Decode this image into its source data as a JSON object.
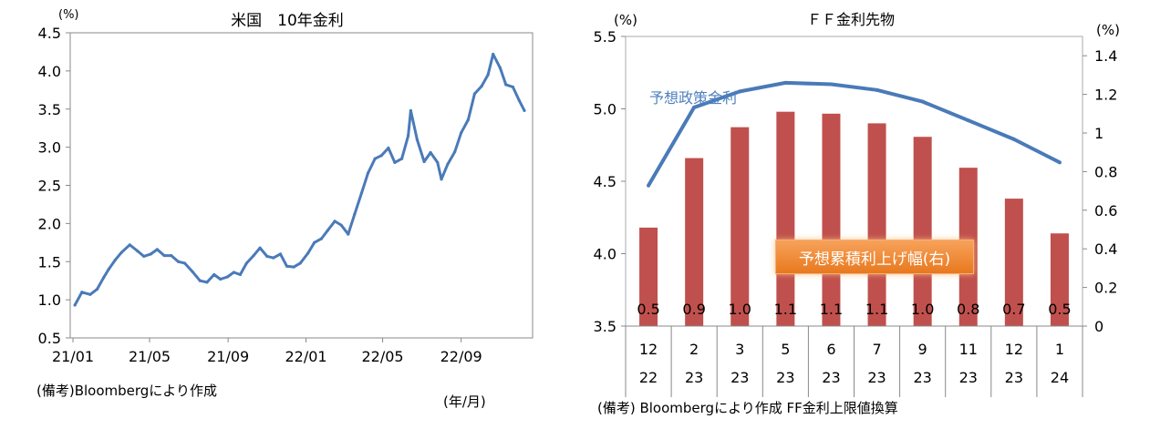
{
  "chart_data": [
    {
      "type": "line",
      "title": "米国　10年金利",
      "unit_label": "(%)",
      "x_axis_unit": "(年/月)",
      "note": "(備考)Bloombergにより作成",
      "ylim": [
        0.5,
        4.5
      ],
      "yticks": [
        "4.5",
        "4.0",
        "3.5",
        "3.0",
        "2.5",
        "2.0",
        "1.5",
        "1.0",
        "0.5"
      ],
      "xticks": [
        "21/01",
        "21/05",
        "21/09",
        "22/01",
        "22/05",
        "22/09"
      ],
      "x_start": "2021-01",
      "x_end": "2022-12",
      "color": "#4a7ab8",
      "grid": false,
      "x": [
        "2021-01-04",
        "2021-01-15",
        "2021-01-28",
        "2021-02-08",
        "2021-02-18",
        "2021-02-26",
        "2021-03-08",
        "2021-03-18",
        "2021-03-31",
        "2021-04-12",
        "2021-04-22",
        "2021-05-03",
        "2021-05-13",
        "2021-05-24",
        "2021-06-04",
        "2021-06-15",
        "2021-06-25",
        "2021-07-07",
        "2021-07-19",
        "2021-07-30",
        "2021-08-10",
        "2021-08-20",
        "2021-08-31",
        "2021-09-10",
        "2021-09-20",
        "2021-09-30",
        "2021-10-11",
        "2021-10-21",
        "2021-11-01",
        "2021-11-11",
        "2021-11-22",
        "2021-12-02",
        "2021-12-13",
        "2021-12-23",
        "2022-01-04",
        "2022-01-14",
        "2022-01-25",
        "2022-02-04",
        "2022-02-15",
        "2022-02-25",
        "2022-03-08",
        "2022-03-18",
        "2022-03-29",
        "2022-04-08",
        "2022-04-19",
        "2022-04-29",
        "2022-05-10",
        "2022-05-20",
        "2022-05-31",
        "2022-06-10",
        "2022-06-14",
        "2022-06-24",
        "2022-07-05",
        "2022-07-15",
        "2022-07-26",
        "2022-08-01",
        "2022-08-11",
        "2022-08-22",
        "2022-09-01",
        "2022-09-12",
        "2022-09-22",
        "2022-10-03",
        "2022-10-13",
        "2022-10-21",
        "2022-11-01",
        "2022-11-10",
        "2022-11-21",
        "2022-12-01",
        "2022-12-09"
      ],
      "values": [
        0.93,
        1.1,
        1.07,
        1.14,
        1.29,
        1.4,
        1.52,
        1.62,
        1.72,
        1.64,
        1.57,
        1.6,
        1.66,
        1.58,
        1.58,
        1.5,
        1.48,
        1.37,
        1.25,
        1.23,
        1.33,
        1.27,
        1.3,
        1.36,
        1.33,
        1.48,
        1.58,
        1.68,
        1.57,
        1.55,
        1.6,
        1.44,
        1.43,
        1.48,
        1.61,
        1.75,
        1.8,
        1.91,
        2.03,
        1.98,
        1.86,
        2.12,
        2.4,
        2.66,
        2.85,
        2.89,
        2.99,
        2.8,
        2.85,
        3.15,
        3.48,
        3.1,
        2.81,
        2.93,
        2.8,
        2.58,
        2.78,
        2.94,
        3.19,
        3.36,
        3.7,
        3.8,
        3.95,
        4.22,
        4.04,
        3.82,
        3.79,
        3.61,
        3.48
      ]
    },
    {
      "type": "bar",
      "title": "ＦＦ金利先物",
      "left_unit": "(%)",
      "right_unit": "(%)",
      "note": "(備考) Bloombergにより作成 FF金利上限値換算",
      "categories": [
        [
          "12",
          "22"
        ],
        [
          "2",
          "23"
        ],
        [
          "3",
          "23"
        ],
        [
          "5",
          "23"
        ],
        [
          "6",
          "23"
        ],
        [
          "7",
          "23"
        ],
        [
          "9",
          "23"
        ],
        [
          "11",
          "23"
        ],
        [
          "12",
          "23"
        ],
        [
          "1",
          "24"
        ]
      ],
      "left_ylim": [
        3.5,
        5.5
      ],
      "left_yticks": [
        "5.5",
        "5.0",
        "4.5",
        "4.0",
        "3.5"
      ],
      "right_ylim": [
        0,
        1.5
      ],
      "right_yticks": [
        "1.4",
        "1.2",
        "1",
        "0.8",
        "0.6",
        "0.4",
        "0.2",
        "0"
      ],
      "series": [
        {
          "name": "予想政策金利",
          "axis": "left",
          "kind": "line",
          "color": "#4a7ab8",
          "values": [
            4.47,
            5.01,
            5.12,
            5.18,
            5.17,
            5.13,
            5.05,
            4.92,
            4.79,
            4.63
          ]
        },
        {
          "name": "予想累積利上げ幅(右)",
          "axis": "right",
          "kind": "bar",
          "color": "#c0504d",
          "values": [
            0.5,
            0.9,
            1.0,
            1.1,
            1.1,
            1.1,
            1.0,
            0.8,
            0.7,
            0.5
          ],
          "bar_values": [
            0.51,
            0.87,
            1.03,
            1.11,
            1.1,
            1.05,
            0.98,
            0.82,
            0.66,
            0.48
          ],
          "data_labels": [
            "0.5",
            "0.9",
            "1.0",
            "1.1",
            "1.1",
            "1.1",
            "1.0",
            "0.8",
            "0.7",
            "0.5"
          ]
        }
      ],
      "grid": false
    }
  ]
}
